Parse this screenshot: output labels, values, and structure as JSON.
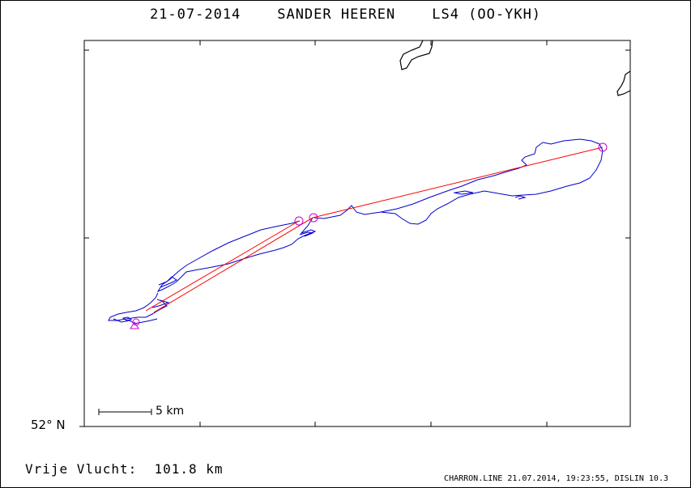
{
  "header": {
    "title": "21-07-2014    SANDER HEEREN    LS4 (OO-YKH)"
  },
  "map": {
    "latitude_label": "52° N",
    "scale_label": "5 km",
    "colors": {
      "track": "#0000cc",
      "task": "#ff0000",
      "turnpoint": "#cc00cc",
      "coast": "#000000"
    }
  },
  "summary": {
    "distance_text": "Vrije Vlucht:  101.8 km"
  },
  "footer": {
    "text": "CHARRON.LINE 21.07.2014, 19:23:55, DISLIN 10.3"
  }
}
